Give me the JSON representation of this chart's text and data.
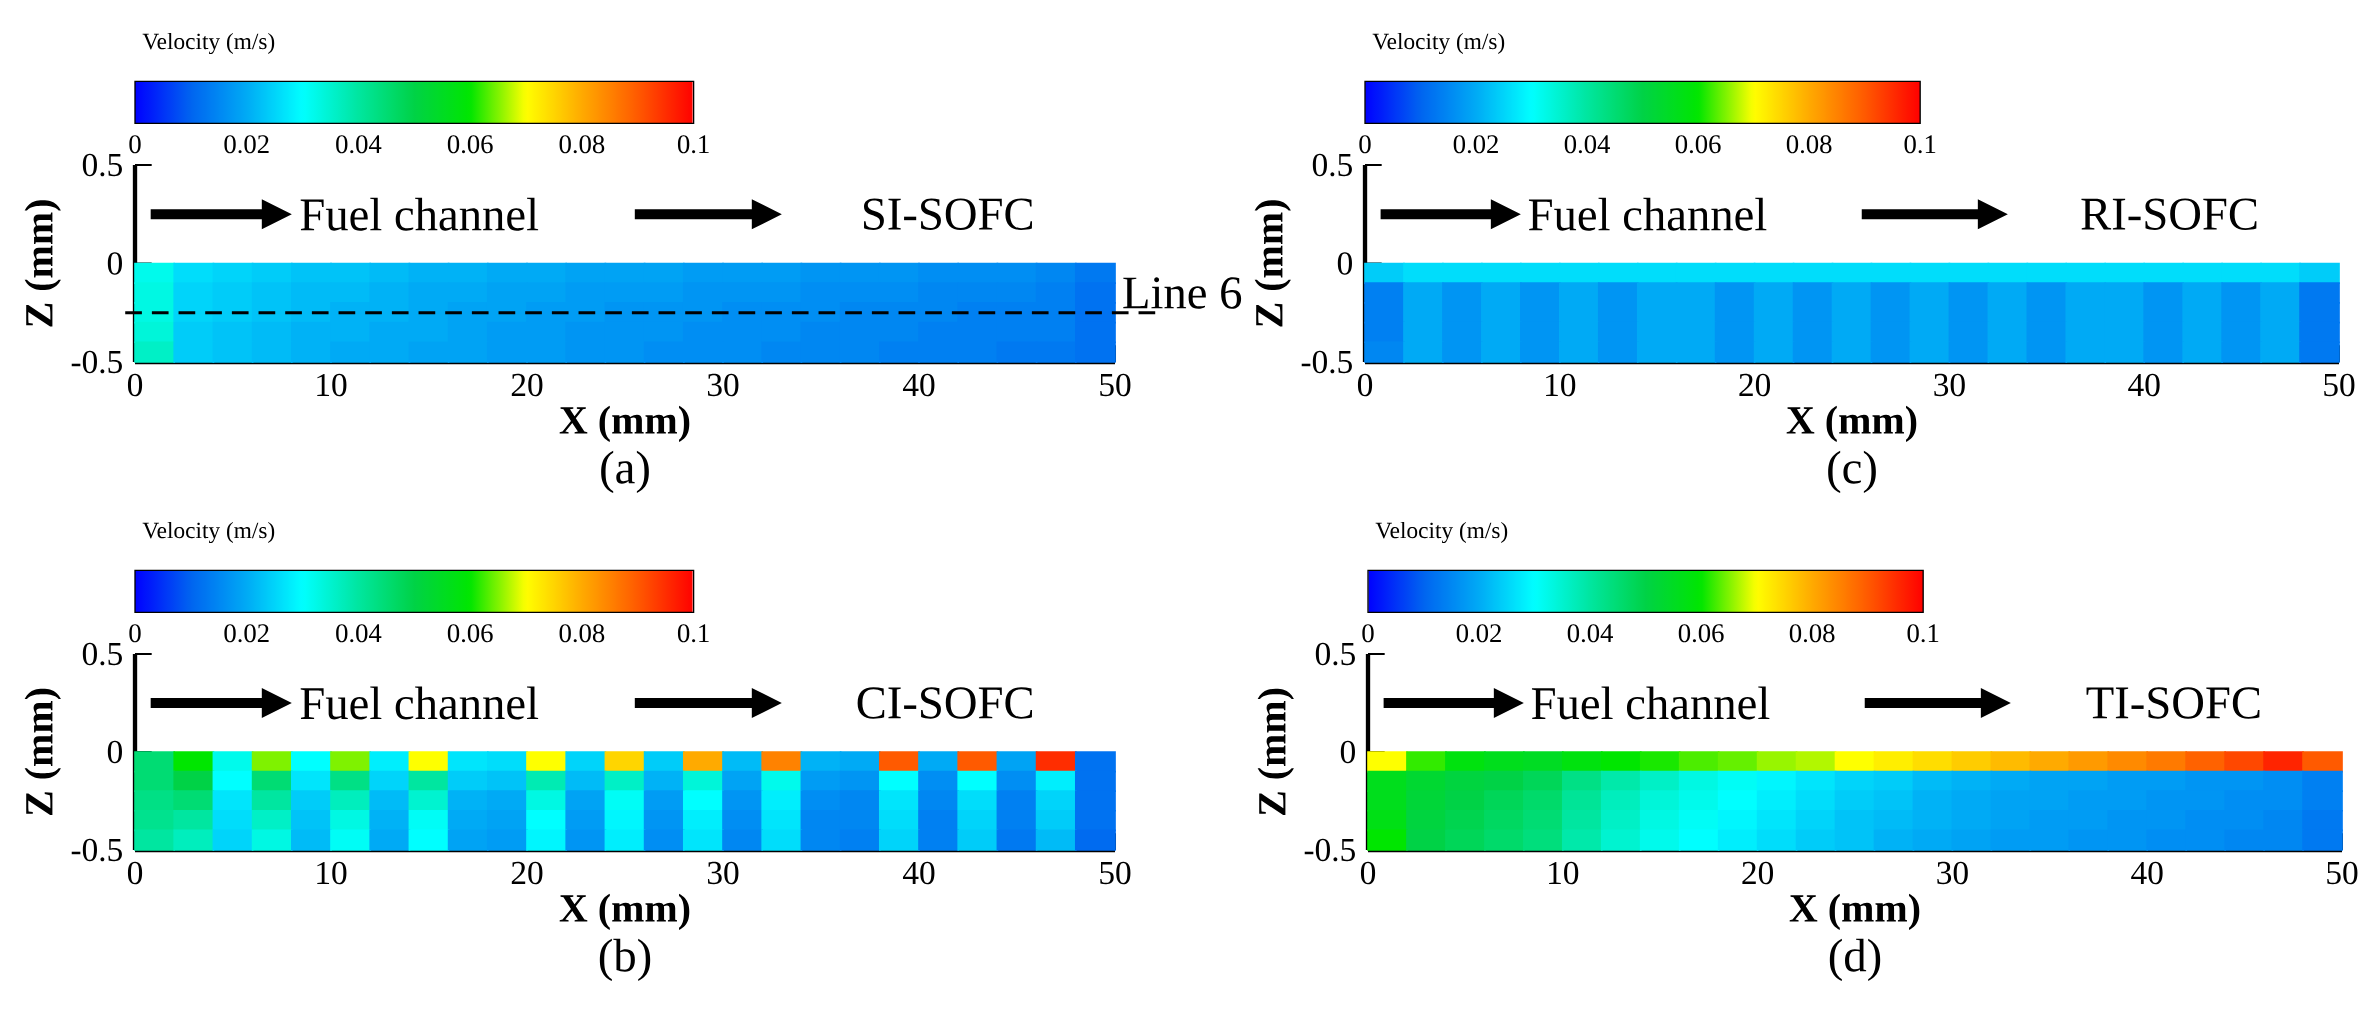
{
  "chart_data": [
    {
      "type": "scatter",
      "marker": "square",
      "clabel": "Velocity (m/s)",
      "xlabel": "X (mm)",
      "ylabel": "Z (mm)",
      "clim": [
        0,
        0.1
      ],
      "cticks": [
        0,
        0.02,
        0.04,
        0.06,
        0.08,
        0.1
      ],
      "xlim": [
        0,
        50
      ],
      "xticks": [
        0,
        10,
        20,
        30,
        40,
        50
      ],
      "ylim": [
        -0.5,
        0.5
      ],
      "yticks": [
        -0.5,
        0,
        0.5
      ],
      "x": [
        1,
        3,
        5,
        7,
        9,
        11,
        13,
        15,
        17,
        19,
        21,
        23,
        25,
        27,
        29,
        31,
        33,
        35,
        37,
        39,
        41,
        43,
        45,
        47,
        49,
        1,
        3,
        5,
        7,
        9,
        11,
        13,
        15,
        17,
        19,
        21,
        23,
        25,
        27,
        29,
        31,
        33,
        35,
        37,
        39,
        41,
        43,
        45,
        47,
        49,
        1,
        3,
        5,
        7,
        9,
        11,
        13,
        15,
        17,
        19,
        21,
        23,
        25,
        27,
        29,
        31,
        33,
        35,
        37,
        39,
        41,
        43,
        45,
        47,
        49,
        1,
        3,
        5,
        7,
        9,
        11,
        13,
        15,
        17,
        19,
        21,
        23,
        25,
        27,
        29,
        31,
        33,
        35,
        37,
        39,
        41,
        43,
        45,
        47,
        49,
        1,
        3,
        5,
        7,
        9,
        11,
        13,
        15,
        17,
        19,
        21,
        23,
        25,
        27,
        29,
        31,
        33,
        35,
        37,
        39,
        41,
        43,
        45,
        47,
        49
      ],
      "values": [
        -0.05,
        -0.05,
        -0.05,
        -0.05,
        -0.05,
        -0.05,
        -0.05,
        -0.05,
        -0.05,
        -0.05,
        -0.05,
        -0.05,
        -0.05,
        -0.05,
        -0.05,
        -0.05,
        -0.05,
        -0.05,
        -0.05,
        -0.05,
        -0.05,
        -0.05,
        -0.05,
        -0.05,
        -0.05,
        -0.15,
        -0.15,
        -0.15,
        -0.15,
        -0.15,
        -0.15,
        -0.15,
        -0.15,
        -0.15,
        -0.15,
        -0.15,
        -0.15,
        -0.15,
        -0.15,
        -0.15,
        -0.15,
        -0.15,
        -0.15,
        -0.15,
        -0.15,
        -0.15,
        -0.15,
        -0.15,
        -0.15,
        -0.15,
        -0.25,
        -0.25,
        -0.25,
        -0.25,
        -0.25,
        -0.25,
        -0.25,
        -0.25,
        -0.25,
        -0.25,
        -0.25,
        -0.25,
        -0.25,
        -0.25,
        -0.25,
        -0.25,
        -0.25,
        -0.25,
        -0.25,
        -0.25,
        -0.25,
        -0.25,
        -0.25,
        -0.25,
        -0.25,
        -0.35,
        -0.35,
        -0.35,
        -0.35,
        -0.35,
        -0.35,
        -0.35,
        -0.35,
        -0.35,
        -0.35,
        -0.35,
        -0.35,
        -0.35,
        -0.35,
        -0.35,
        -0.35,
        -0.35,
        -0.35,
        -0.35,
        -0.35,
        -0.35,
        -0.35,
        -0.35,
        -0.35,
        -0.35,
        -0.45,
        -0.45,
        -0.45,
        -0.45,
        -0.45,
        -0.45,
        -0.45,
        -0.45,
        -0.45,
        -0.45,
        -0.45,
        -0.45,
        -0.45,
        -0.45,
        -0.45,
        -0.45,
        -0.45,
        -0.45,
        -0.45,
        -0.45,
        -0.45,
        -0.45,
        -0.45,
        -0.45,
        -0.45
      ],
      "cvalues": [
        0.032,
        0.026,
        0.025,
        0.024,
        0.023,
        0.023,
        0.022,
        0.021,
        0.021,
        0.02,
        0.02,
        0.019,
        0.019,
        0.019,
        0.018,
        0.018,
        0.018,
        0.017,
        0.017,
        0.017,
        0.016,
        0.016,
        0.016,
        0.015,
        0.013,
        0.033,
        0.025,
        0.024,
        0.023,
        0.022,
        0.022,
        0.021,
        0.02,
        0.02,
        0.019,
        0.019,
        0.018,
        0.018,
        0.018,
        0.017,
        0.017,
        0.017,
        0.016,
        0.016,
        0.016,
        0.015,
        0.015,
        0.015,
        0.014,
        0.012,
        0.033,
        0.025,
        0.024,
        0.023,
        0.022,
        0.021,
        0.021,
        0.02,
        0.019,
        0.019,
        0.018,
        0.018,
        0.017,
        0.017,
        0.017,
        0.016,
        0.016,
        0.016,
        0.015,
        0.015,
        0.015,
        0.014,
        0.014,
        0.014,
        0.012,
        0.034,
        0.024,
        0.023,
        0.022,
        0.021,
        0.021,
        0.02,
        0.02,
        0.019,
        0.018,
        0.018,
        0.017,
        0.017,
        0.017,
        0.016,
        0.016,
        0.016,
        0.015,
        0.015,
        0.015,
        0.014,
        0.014,
        0.014,
        0.014,
        0.012,
        0.036,
        0.024,
        0.023,
        0.022,
        0.021,
        0.02,
        0.02,
        0.019,
        0.019,
        0.018,
        0.018,
        0.017,
        0.017,
        0.016,
        0.016,
        0.016,
        0.015,
        0.015,
        0.015,
        0.014,
        0.014,
        0.014,
        0.013,
        0.013,
        0.012
      ],
      "ref_lines": [
        {
          "axis": "y",
          "value": -0.25,
          "label": "Line 6",
          "line_style": "dashed"
        }
      ],
      "annotations": [
        "Fuel channel",
        "SI-SOFC",
        "(a)"
      ]
    },
    {
      "type": "scatter",
      "marker": "square",
      "clabel": "Velocity (m/s)",
      "xlabel": "X (mm)",
      "ylabel": "Z (mm)",
      "clim": [
        0,
        0.1
      ],
      "cticks": [
        0,
        0.02,
        0.04,
        0.06,
        0.08,
        0.1
      ],
      "xlim": [
        0,
        50
      ],
      "xticks": [
        0,
        10,
        20,
        30,
        40,
        50
      ],
      "ylim": [
        -0.5,
        0.5
      ],
      "yticks": [
        -0.5,
        0,
        0.5
      ],
      "x": [
        1,
        3,
        5,
        7,
        9,
        11,
        13,
        15,
        17,
        19,
        21,
        23,
        25,
        27,
        29,
        31,
        33,
        35,
        37,
        39,
        41,
        43,
        45,
        47,
        49,
        1,
        3,
        5,
        7,
        9,
        11,
        13,
        15,
        17,
        19,
        21,
        23,
        25,
        27,
        29,
        31,
        33,
        35,
        37,
        39,
        41,
        43,
        45,
        47,
        49,
        1,
        3,
        5,
        7,
        9,
        11,
        13,
        15,
        17,
        19,
        21,
        23,
        25,
        27,
        29,
        31,
        33,
        35,
        37,
        39,
        41,
        43,
        45,
        47,
        49,
        1,
        3,
        5,
        7,
        9,
        11,
        13,
        15,
        17,
        19,
        21,
        23,
        25,
        27,
        29,
        31,
        33,
        35,
        37,
        39,
        41,
        43,
        45,
        47,
        49,
        1,
        3,
        5,
        7,
        9,
        11,
        13,
        15,
        17,
        19,
        21,
        23,
        25,
        27,
        29,
        31,
        33,
        35,
        37,
        39,
        41,
        43,
        45,
        47,
        49
      ],
      "values": [
        -0.05,
        -0.05,
        -0.05,
        -0.05,
        -0.05,
        -0.05,
        -0.05,
        -0.05,
        -0.05,
        -0.05,
        -0.05,
        -0.05,
        -0.05,
        -0.05,
        -0.05,
        -0.05,
        -0.05,
        -0.05,
        -0.05,
        -0.05,
        -0.05,
        -0.05,
        -0.05,
        -0.05,
        -0.05,
        -0.15,
        -0.15,
        -0.15,
        -0.15,
        -0.15,
        -0.15,
        -0.15,
        -0.15,
        -0.15,
        -0.15,
        -0.15,
        -0.15,
        -0.15,
        -0.15,
        -0.15,
        -0.15,
        -0.15,
        -0.15,
        -0.15,
        -0.15,
        -0.15,
        -0.15,
        -0.15,
        -0.15,
        -0.15,
        -0.25,
        -0.25,
        -0.25,
        -0.25,
        -0.25,
        -0.25,
        -0.25,
        -0.25,
        -0.25,
        -0.25,
        -0.25,
        -0.25,
        -0.25,
        -0.25,
        -0.25,
        -0.25,
        -0.25,
        -0.25,
        -0.25,
        -0.25,
        -0.25,
        -0.25,
        -0.25,
        -0.25,
        -0.25,
        -0.35,
        -0.35,
        -0.35,
        -0.35,
        -0.35,
        -0.35,
        -0.35,
        -0.35,
        -0.35,
        -0.35,
        -0.35,
        -0.35,
        -0.35,
        -0.35,
        -0.35,
        -0.35,
        -0.35,
        -0.35,
        -0.35,
        -0.35,
        -0.35,
        -0.35,
        -0.35,
        -0.35,
        -0.35,
        -0.45,
        -0.45,
        -0.45,
        -0.45,
        -0.45,
        -0.45,
        -0.45,
        -0.45,
        -0.45,
        -0.45,
        -0.45,
        -0.45,
        -0.45,
        -0.45,
        -0.45,
        -0.45,
        -0.45,
        -0.45,
        -0.45,
        -0.45,
        -0.45,
        -0.45,
        -0.45,
        -0.45,
        -0.45
      ],
      "cvalues": [
        0.024,
        0.026,
        0.026,
        0.026,
        0.026,
        0.026,
        0.026,
        0.026,
        0.026,
        0.026,
        0.026,
        0.026,
        0.026,
        0.026,
        0.026,
        0.026,
        0.026,
        0.026,
        0.026,
        0.026,
        0.026,
        0.026,
        0.026,
        0.026,
        0.024,
        0.014,
        0.02,
        0.017,
        0.02,
        0.017,
        0.02,
        0.017,
        0.02,
        0.02,
        0.017,
        0.02,
        0.017,
        0.02,
        0.017,
        0.02,
        0.017,
        0.02,
        0.017,
        0.02,
        0.02,
        0.017,
        0.02,
        0.017,
        0.02,
        0.013,
        0.014,
        0.02,
        0.017,
        0.02,
        0.017,
        0.02,
        0.017,
        0.02,
        0.02,
        0.017,
        0.02,
        0.017,
        0.02,
        0.017,
        0.02,
        0.017,
        0.02,
        0.017,
        0.02,
        0.02,
        0.017,
        0.02,
        0.017,
        0.02,
        0.013,
        0.014,
        0.02,
        0.017,
        0.02,
        0.017,
        0.02,
        0.017,
        0.02,
        0.02,
        0.017,
        0.02,
        0.017,
        0.02,
        0.017,
        0.02,
        0.017,
        0.02,
        0.017,
        0.02,
        0.02,
        0.017,
        0.02,
        0.017,
        0.02,
        0.013,
        0.015,
        0.02,
        0.017,
        0.02,
        0.017,
        0.02,
        0.017,
        0.02,
        0.02,
        0.017,
        0.02,
        0.017,
        0.02,
        0.017,
        0.02,
        0.017,
        0.02,
        0.017,
        0.02,
        0.02,
        0.017,
        0.02,
        0.017,
        0.02,
        0.013
      ],
      "annotations": [
        "Fuel channel",
        "RI-SOFC",
        "(c)"
      ]
    },
    {
      "type": "scatter",
      "marker": "square",
      "clabel": "Velocity (m/s)",
      "xlabel": "X (mm)",
      "ylabel": "Z (mm)",
      "clim": [
        0,
        0.1
      ],
      "cticks": [
        0,
        0.02,
        0.04,
        0.06,
        0.08,
        0.1
      ],
      "xlim": [
        0,
        50
      ],
      "xticks": [
        0,
        10,
        20,
        30,
        40,
        50
      ],
      "ylim": [
        -0.5,
        0.5
      ],
      "yticks": [
        -0.5,
        0,
        0.5
      ],
      "x": [
        1,
        3,
        5,
        7,
        9,
        11,
        13,
        15,
        17,
        19,
        21,
        23,
        25,
        27,
        29,
        31,
        33,
        35,
        37,
        39,
        41,
        43,
        45,
        47,
        49,
        1,
        3,
        5,
        7,
        9,
        11,
        13,
        15,
        17,
        19,
        21,
        23,
        25,
        27,
        29,
        31,
        33,
        35,
        37,
        39,
        41,
        43,
        45,
        47,
        49,
        1,
        3,
        5,
        7,
        9,
        11,
        13,
        15,
        17,
        19,
        21,
        23,
        25,
        27,
        29,
        31,
        33,
        35,
        37,
        39,
        41,
        43,
        45,
        47,
        49,
        1,
        3,
        5,
        7,
        9,
        11,
        13,
        15,
        17,
        19,
        21,
        23,
        25,
        27,
        29,
        31,
        33,
        35,
        37,
        39,
        41,
        43,
        45,
        47,
        49,
        1,
        3,
        5,
        7,
        9,
        11,
        13,
        15,
        17,
        19,
        21,
        23,
        25,
        27,
        29,
        31,
        33,
        35,
        37,
        39,
        41,
        43,
        45,
        47,
        49
      ],
      "values": [
        -0.05,
        -0.05,
        -0.05,
        -0.05,
        -0.05,
        -0.05,
        -0.05,
        -0.05,
        -0.05,
        -0.05,
        -0.05,
        -0.05,
        -0.05,
        -0.05,
        -0.05,
        -0.05,
        -0.05,
        -0.05,
        -0.05,
        -0.05,
        -0.05,
        -0.05,
        -0.05,
        -0.05,
        -0.05,
        -0.15,
        -0.15,
        -0.15,
        -0.15,
        -0.15,
        -0.15,
        -0.15,
        -0.15,
        -0.15,
        -0.15,
        -0.15,
        -0.15,
        -0.15,
        -0.15,
        -0.15,
        -0.15,
        -0.15,
        -0.15,
        -0.15,
        -0.15,
        -0.15,
        -0.15,
        -0.15,
        -0.15,
        -0.15,
        -0.25,
        -0.25,
        -0.25,
        -0.25,
        -0.25,
        -0.25,
        -0.25,
        -0.25,
        -0.25,
        -0.25,
        -0.25,
        -0.25,
        -0.25,
        -0.25,
        -0.25,
        -0.25,
        -0.25,
        -0.25,
        -0.25,
        -0.25,
        -0.25,
        -0.25,
        -0.25,
        -0.25,
        -0.25,
        -0.35,
        -0.35,
        -0.35,
        -0.35,
        -0.35,
        -0.35,
        -0.35,
        -0.35,
        -0.35,
        -0.35,
        -0.35,
        -0.35,
        -0.35,
        -0.35,
        -0.35,
        -0.35,
        -0.35,
        -0.35,
        -0.35,
        -0.35,
        -0.35,
        -0.35,
        -0.35,
        -0.35,
        -0.35,
        -0.45,
        -0.45,
        -0.45,
        -0.45,
        -0.45,
        -0.45,
        -0.45,
        -0.45,
        -0.45,
        -0.45,
        -0.45,
        -0.45,
        -0.45,
        -0.45,
        -0.45,
        -0.45,
        -0.45,
        -0.45,
        -0.45,
        -0.45,
        -0.45,
        -0.45,
        -0.45,
        -0.45,
        -0.45
      ],
      "cvalues": [
        0.045,
        0.06,
        0.032,
        0.065,
        0.03,
        0.065,
        0.028,
        0.07,
        0.027,
        0.026,
        0.07,
        0.025,
        0.075,
        0.024,
        0.08,
        0.022,
        0.085,
        0.021,
        0.02,
        0.09,
        0.02,
        0.09,
        0.019,
        0.095,
        0.012,
        0.045,
        0.05,
        0.03,
        0.045,
        0.027,
        0.043,
        0.025,
        0.04,
        0.024,
        0.023,
        0.038,
        0.022,
        0.036,
        0.021,
        0.034,
        0.019,
        0.032,
        0.018,
        0.017,
        0.03,
        0.016,
        0.03,
        0.016,
        0.028,
        0.012,
        0.043,
        0.045,
        0.027,
        0.04,
        0.024,
        0.037,
        0.022,
        0.035,
        0.021,
        0.02,
        0.033,
        0.019,
        0.031,
        0.018,
        0.03,
        0.017,
        0.028,
        0.016,
        0.015,
        0.027,
        0.015,
        0.026,
        0.014,
        0.025,
        0.012,
        0.042,
        0.04,
        0.026,
        0.036,
        0.023,
        0.033,
        0.021,
        0.031,
        0.02,
        0.019,
        0.03,
        0.018,
        0.029,
        0.017,
        0.028,
        0.016,
        0.027,
        0.015,
        0.015,
        0.026,
        0.014,
        0.025,
        0.014,
        0.024,
        0.012,
        0.04,
        0.037,
        0.025,
        0.033,
        0.022,
        0.031,
        0.02,
        0.03,
        0.019,
        0.018,
        0.029,
        0.017,
        0.028,
        0.016,
        0.027,
        0.015,
        0.026,
        0.015,
        0.014,
        0.025,
        0.014,
        0.024,
        0.013,
        0.022,
        0.011
      ],
      "annotations": [
        "Fuel channel",
        "CI-SOFC",
        "(b)"
      ]
    },
    {
      "type": "scatter",
      "marker": "square",
      "clabel": "Velocity (m/s)",
      "xlabel": "X (mm)",
      "ylabel": "Z (mm)",
      "clim": [
        0,
        0.1
      ],
      "cticks": [
        0,
        0.02,
        0.04,
        0.06,
        0.08,
        0.1
      ],
      "xlim": [
        0,
        50
      ],
      "xticks": [
        0,
        10,
        20,
        30,
        40,
        50
      ],
      "ylim": [
        -0.5,
        0.5
      ],
      "yticks": [
        -0.5,
        0,
        0.5
      ],
      "x": [
        1,
        3,
        5,
        7,
        9,
        11,
        13,
        15,
        17,
        19,
        21,
        23,
        25,
        27,
        29,
        31,
        33,
        35,
        37,
        39,
        41,
        43,
        45,
        47,
        49,
        1,
        3,
        5,
        7,
        9,
        11,
        13,
        15,
        17,
        19,
        21,
        23,
        25,
        27,
        29,
        31,
        33,
        35,
        37,
        39,
        41,
        43,
        45,
        47,
        49,
        1,
        3,
        5,
        7,
        9,
        11,
        13,
        15,
        17,
        19,
        21,
        23,
        25,
        27,
        29,
        31,
        33,
        35,
        37,
        39,
        41,
        43,
        45,
        47,
        49,
        1,
        3,
        5,
        7,
        9,
        11,
        13,
        15,
        17,
        19,
        21,
        23,
        25,
        27,
        29,
        31,
        33,
        35,
        37,
        39,
        41,
        43,
        45,
        47,
        49,
        1,
        3,
        5,
        7,
        9,
        11,
        13,
        15,
        17,
        19,
        21,
        23,
        25,
        27,
        29,
        31,
        33,
        35,
        37,
        39,
        41,
        43,
        45,
        47,
        49
      ],
      "values": [
        -0.05,
        -0.05,
        -0.05,
        -0.05,
        -0.05,
        -0.05,
        -0.05,
        -0.05,
        -0.05,
        -0.05,
        -0.05,
        -0.05,
        -0.05,
        -0.05,
        -0.05,
        -0.05,
        -0.05,
        -0.05,
        -0.05,
        -0.05,
        -0.05,
        -0.05,
        -0.05,
        -0.05,
        -0.05,
        -0.15,
        -0.15,
        -0.15,
        -0.15,
        -0.15,
        -0.15,
        -0.15,
        -0.15,
        -0.15,
        -0.15,
        -0.15,
        -0.15,
        -0.15,
        -0.15,
        -0.15,
        -0.15,
        -0.15,
        -0.15,
        -0.15,
        -0.15,
        -0.15,
        -0.15,
        -0.15,
        -0.15,
        -0.15,
        -0.25,
        -0.25,
        -0.25,
        -0.25,
        -0.25,
        -0.25,
        -0.25,
        -0.25,
        -0.25,
        -0.25,
        -0.25,
        -0.25,
        -0.25,
        -0.25,
        -0.25,
        -0.25,
        -0.25,
        -0.25,
        -0.25,
        -0.25,
        -0.25,
        -0.25,
        -0.25,
        -0.25,
        -0.25,
        -0.35,
        -0.35,
        -0.35,
        -0.35,
        -0.35,
        -0.35,
        -0.35,
        -0.35,
        -0.35,
        -0.35,
        -0.35,
        -0.35,
        -0.35,
        -0.35,
        -0.35,
        -0.35,
        -0.35,
        -0.35,
        -0.35,
        -0.35,
        -0.35,
        -0.35,
        -0.35,
        -0.35,
        -0.35,
        -0.45,
        -0.45,
        -0.45,
        -0.45,
        -0.45,
        -0.45,
        -0.45,
        -0.45,
        -0.45,
        -0.45,
        -0.45,
        -0.45,
        -0.45,
        -0.45,
        -0.45,
        -0.45,
        -0.45,
        -0.45,
        -0.45,
        -0.45,
        -0.45,
        -0.45,
        -0.45,
        -0.45,
        -0.45
      ],
      "cvalues": [
        0.07,
        0.062,
        0.058,
        0.056,
        0.055,
        0.058,
        0.06,
        0.061,
        0.063,
        0.064,
        0.066,
        0.067,
        0.07,
        0.072,
        0.074,
        0.076,
        0.078,
        0.08,
        0.082,
        0.084,
        0.086,
        0.089,
        0.092,
        0.096,
        0.09,
        0.056,
        0.053,
        0.051,
        0.05,
        0.048,
        0.043,
        0.039,
        0.036,
        0.033,
        0.031,
        0.029,
        0.027,
        0.025,
        0.024,
        0.022,
        0.021,
        0.02,
        0.019,
        0.019,
        0.018,
        0.018,
        0.017,
        0.017,
        0.016,
        0.014,
        0.056,
        0.052,
        0.05,
        0.048,
        0.046,
        0.041,
        0.037,
        0.034,
        0.032,
        0.03,
        0.028,
        0.026,
        0.024,
        0.023,
        0.021,
        0.02,
        0.019,
        0.019,
        0.018,
        0.018,
        0.017,
        0.017,
        0.016,
        0.016,
        0.014,
        0.057,
        0.051,
        0.049,
        0.047,
        0.045,
        0.04,
        0.036,
        0.033,
        0.031,
        0.029,
        0.027,
        0.025,
        0.023,
        0.022,
        0.021,
        0.02,
        0.019,
        0.018,
        0.018,
        0.017,
        0.017,
        0.016,
        0.016,
        0.015,
        0.013,
        0.06,
        0.05,
        0.048,
        0.046,
        0.044,
        0.039,
        0.035,
        0.032,
        0.03,
        0.028,
        0.026,
        0.024,
        0.023,
        0.021,
        0.02,
        0.019,
        0.018,
        0.018,
        0.017,
        0.017,
        0.016,
        0.016,
        0.015,
        0.015,
        0.013
      ],
      "annotations": [
        "Fuel channel",
        "TI-SOFC",
        "(d)"
      ]
    }
  ]
}
